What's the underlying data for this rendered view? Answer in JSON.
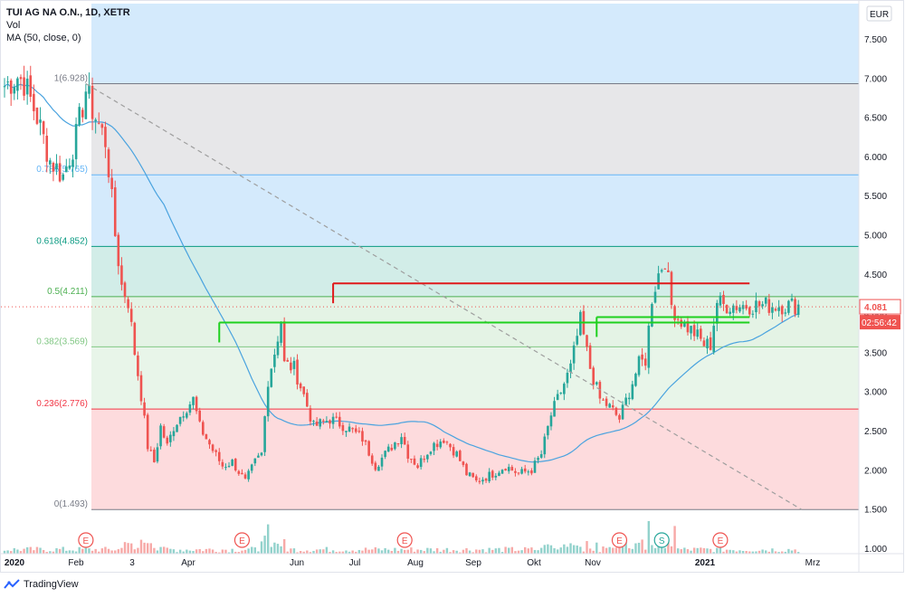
{
  "legend": {
    "title": "TUI AG NA O.N., 1D, XETR",
    "line2": "Vol",
    "line3": "MA (50, close, 0)"
  },
  "currency": "EUR",
  "footer": {
    "brand": "TradingView",
    "brand_icon": "tradingview-logo-icon"
  },
  "colors": {
    "up": "#26a69a",
    "down": "#ef5350",
    "ma": "#4aa3df",
    "resistance": "#e0191b",
    "support": "#1ed01e",
    "trend": "#9e9e9e"
  },
  "chart_data": {
    "type": "candlestick",
    "x_ticks": [
      "2020",
      "Feb",
      "3",
      "Apr",
      "Jun",
      "Jul",
      "Aug",
      "Sep",
      "Okt",
      "Nov",
      "2021",
      "Mrz"
    ],
    "y_ticks": [
      "7.500",
      "7.000",
      "6.500",
      "6.000",
      "5.500",
      "5.000",
      "4.500",
      "4.000",
      "3.500",
      "3.000",
      "2.500",
      "2.000",
      "1.500",
      "1.000"
    ],
    "y_range": [
      0.93,
      7.95
    ],
    "price_label": "4.081",
    "countdown_label": "02:56:42",
    "fibonacci": [
      {
        "label": "1(6.928)",
        "value": 6.928,
        "color": "#787b86",
        "fill": "rgba(120,123,134,0.18)"
      },
      {
        "label": "0.786(5.765)",
        "value": 5.765,
        "color": "#64b5f6",
        "fill": "rgba(100,181,246,0.28)"
      },
      {
        "label": "0.618(4.852)",
        "value": 4.852,
        "color": "#089981",
        "fill": "rgba(8,153,129,0.18)"
      },
      {
        "label": "0.5(4.211)",
        "value": 4.211,
        "color": "#4caf50",
        "fill": "rgba(76,175,80,0.15)"
      },
      {
        "label": "0.382(3.569)",
        "value": 3.569,
        "color": "#81c784",
        "fill": "rgba(129,199,132,0.18)"
      },
      {
        "label": "0.236(2.776)",
        "value": 2.776,
        "color": "#f23645",
        "fill": "rgba(242,54,69,0.18)"
      },
      {
        "label": "0(1.493)",
        "value": 1.493,
        "color": "#787b86",
        "fill": ""
      }
    ],
    "top_zone_fill": "rgba(100,181,246,0.28)",
    "horizontal_levels": [
      {
        "name": "resistance",
        "value": 4.38,
        "from": 101,
        "to": 229
      },
      {
        "name": "support-upper",
        "value": 3.95,
        "from": 182,
        "to": 229
      },
      {
        "name": "support-lower",
        "value": 3.88,
        "from": 66,
        "to": 229
      }
    ],
    "trend_line": {
      "from": [
        25,
        6.928
      ],
      "to": [
        245,
        1.493
      ]
    },
    "events": [
      {
        "label": "E",
        "index": 25
      },
      {
        "label": "E",
        "index": 73
      },
      {
        "label": "E",
        "index": 123
      },
      {
        "label": "E",
        "index": 189
      },
      {
        "label": "S",
        "index": 202
      },
      {
        "label": "E",
        "index": 220
      }
    ],
    "waypoints": [
      [
        0,
        6.9
      ],
      [
        4,
        7.02
      ],
      [
        6,
        6.95
      ],
      [
        10,
        6.5
      ],
      [
        14,
        5.95
      ],
      [
        18,
        5.75
      ],
      [
        22,
        6.25
      ],
      [
        25,
        6.85
      ],
      [
        27,
        6.6
      ],
      [
        31,
        6.2
      ],
      [
        32,
        5.85
      ],
      [
        34,
        5.0
      ],
      [
        36,
        4.35
      ],
      [
        38,
        4.15
      ],
      [
        40,
        3.5
      ],
      [
        42,
        2.95
      ],
      [
        44,
        2.3
      ],
      [
        46,
        2.1
      ],
      [
        48,
        2.55
      ],
      [
        50,
        2.3
      ],
      [
        52,
        2.55
      ],
      [
        55,
        2.75
      ],
      [
        58,
        2.9
      ],
      [
        60,
        2.55
      ],
      [
        64,
        2.25
      ],
      [
        67,
        2.05
      ],
      [
        70,
        2.1
      ],
      [
        74,
        1.85
      ],
      [
        77,
        2.1
      ],
      [
        79,
        2.2
      ],
      [
        81,
        3.15
      ],
      [
        83,
        3.5
      ],
      [
        85,
        3.9
      ],
      [
        86,
        3.35
      ],
      [
        89,
        3.3
      ],
      [
        92,
        2.95
      ],
      [
        95,
        2.55
      ],
      [
        100,
        2.65
      ],
      [
        105,
        2.55
      ],
      [
        110,
        2.4
      ],
      [
        114,
        2.05
      ],
      [
        118,
        2.25
      ],
      [
        122,
        2.45
      ],
      [
        124,
        2.2
      ],
      [
        127,
        2.05
      ],
      [
        131,
        2.3
      ],
      [
        135,
        2.4
      ],
      [
        139,
        2.2
      ],
      [
        142,
        1.95
      ],
      [
        145,
        1.85
      ],
      [
        150,
        1.95
      ],
      [
        154,
        2.05
      ],
      [
        158,
        1.95
      ],
      [
        162,
        2.0
      ],
      [
        165,
        2.2
      ],
      [
        168,
        2.7
      ],
      [
        171,
        3.0
      ],
      [
        174,
        3.3
      ],
      [
        177,
        3.9
      ],
      [
        180,
        3.3
      ],
      [
        183,
        2.9
      ],
      [
        186,
        2.8
      ],
      [
        189,
        2.65
      ],
      [
        192,
        3.0
      ],
      [
        195,
        3.35
      ],
      [
        197,
        3.4
      ],
      [
        199,
        4.2
      ],
      [
        201,
        4.5
      ],
      [
        203,
        4.7
      ],
      [
        205,
        4.1
      ],
      [
        207,
        3.95
      ],
      [
        209,
        3.85
      ],
      [
        212,
        3.75
      ],
      [
        215,
        3.6
      ],
      [
        217,
        3.6
      ],
      [
        219,
        4.15
      ],
      [
        221,
        4.1
      ]
    ],
    "gaps": [
      [
        198,
        199
      ]
    ]
  }
}
